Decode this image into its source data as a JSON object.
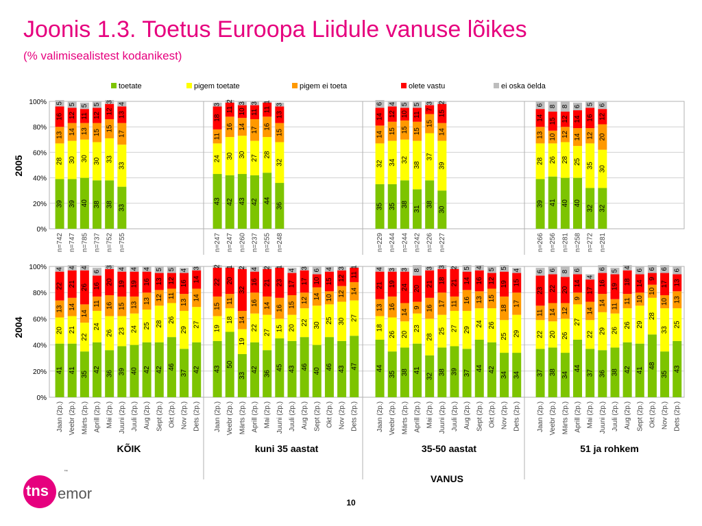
{
  "title": "Joonis 1.3. Toetus Euroopa Liidule vanuse lõikes",
  "subtitle": "(% valimisealistest kodanikest)",
  "page_number": "10",
  "logo_text": "tns emor",
  "colors": {
    "toetate": "#7dc400",
    "pigem toetate": "#ffff00",
    "pigem ei toeta": "#ff9900",
    "olete vastu": "#ff0000",
    "ei oska öelda": "#bdbdbd",
    "accent": "#e6007e"
  },
  "chart_data": [
    {
      "type": "bar",
      "stacked": true,
      "row_label": "2005",
      "ylim": [
        0,
        100
      ],
      "y_ticks": [
        "0%",
        "20%",
        "40%",
        "60%",
        "80%",
        "100%"
      ],
      "legend": [
        "toetate",
        "pigem toetate",
        "pigem ei toeta",
        "olete vastu",
        "ei oska öelda"
      ],
      "legend_position": "top",
      "groups": [
        {
          "categories": [
            "n=742",
            "n=747",
            "n=785",
            "n=737",
            "n=752",
            "n=755"
          ],
          "series": {
            "toetate": [
              39,
              39,
              40,
              38,
              38,
              33
            ],
            "pigem toetate": [
              28,
              30,
              30,
              30,
              33,
              33
            ],
            "pigem ei toeta": [
              13,
              14,
              13,
              15,
              15,
              17
            ],
            "olete vastu": [
              16,
              12,
              11,
              12,
              12,
              13
            ],
            "ei oska öelda": [
              5,
              5,
              5,
              5,
              3,
              4
            ]
          }
        },
        {
          "categories": [
            "n=247",
            "n=247",
            "n=260",
            "n=237",
            "n=255",
            "n=248"
          ],
          "series": {
            "toetate": [
              43,
              42,
              43,
              42,
              44,
              36
            ],
            "pigem toetate": [
              24,
              30,
              30,
              27,
              28,
              32
            ],
            "pigem ei toeta": [
              11,
              16,
              14,
              17,
              16,
              15
            ],
            "olete vastu": [
              18,
              11,
              10,
              11,
              11,
              13
            ],
            "ei oska öelda": [
              3,
              2,
              3,
              3,
              1,
              3
            ]
          }
        },
        {
          "categories": [
            "n=229",
            "n=244",
            "n=244",
            "n=242",
            "n=226",
            "n=227"
          ],
          "series": {
            "toetate": [
              35,
              35,
              38,
              31,
              38,
              30
            ],
            "pigem toetate": [
              32,
              34,
              32,
              38,
              37,
              39
            ],
            "pigem ei toeta": [
              14,
              15,
              15,
              15,
              15,
              14
            ],
            "olete vastu": [
              14,
              12,
              10,
              11,
              7,
              15
            ],
            "ei oska öelda": [
              6,
              4,
              5,
              5,
              3,
              2
            ]
          }
        },
        {
          "categories": [
            "n=266",
            "n=256",
            "n=281",
            "n=258",
            "n=272",
            "n=281"
          ],
          "series": {
            "toetate": [
              39,
              41,
              40,
              40,
              32,
              32
            ],
            "pigem toetate": [
              28,
              26,
              28,
              25,
              35,
              30
            ],
            "pigem ei toeta": [
              13,
              10,
              12,
              14,
              12,
              20
            ],
            "olete vastu": [
              14,
              15,
              12,
              14,
              16,
              12
            ],
            "ei oska öelda": [
              6,
              8,
              8,
              6,
              5,
              6
            ]
          }
        }
      ]
    },
    {
      "type": "bar",
      "stacked": true,
      "row_label": "2004",
      "ylim": [
        0,
        100
      ],
      "y_ticks": [
        "0%",
        "20%",
        "40%",
        "60%",
        "80%",
        "100%"
      ],
      "x_axis_title": "VANUS",
      "categories": [
        "Jaan (2p.)",
        "Veebr (2p.)",
        "Märts (2p.)",
        "Aprill (2p.)",
        "Mai (2p.)",
        "Juuni (2p.)",
        "Juuli (2p.)",
        "Aug (2p.)",
        "Sept (2p.)",
        "Okt (2p.)",
        "Nov (2p.)",
        "Dets (2p.)"
      ],
      "groups": [
        {
          "name": "KÕIK",
          "series": {
            "toetate": [
              41,
              41,
              35,
              42,
              36,
              39,
              40,
              42,
              42,
              46,
              37,
              42
            ],
            "pigem toetate": [
              20,
              21,
              22,
              24,
              26,
              23,
              24,
              25,
              28,
              26,
              29,
              27
            ],
            "pigem ei toeta": [
              13,
              14,
              14,
              11,
              16,
              15,
              13,
              13,
              12,
              11,
              13,
              14
            ],
            "olete vastu": [
              22,
              21,
              26,
              16,
              20,
              19,
              19,
              16,
              13,
              12,
              16,
              14
            ],
            "ei oska öelda": [
              4,
              4,
              4,
              6,
              3,
              4,
              4,
              4,
              5,
              5,
              4,
              3
            ]
          }
        },
        {
          "name": "kuni 35 aastat",
          "series": {
            "toetate": [
              43,
              50,
              33,
              42,
              36,
              45,
              43,
              46,
              40,
              46,
              43,
              47
            ],
            "pigem toetate": [
              19,
              18,
              19,
              22,
              27,
              15,
              20,
              22,
              30,
              25,
              30,
              27
            ],
            "pigem ei toeta": [
              15,
              11,
              14,
              16,
              14,
              16,
              15,
              12,
              14,
              10,
              12,
              14
            ],
            "olete vastu": [
              22,
              20,
              32,
              16,
              21,
              23,
              17,
              17,
              10,
              15,
              12,
              11
            ],
            "ei oska öelda": [
              2,
              1,
              2,
              4,
              2,
              1,
              4,
              3,
              6,
              4,
              3,
              1
            ]
          }
        },
        {
          "name": "35-50 aastat",
          "series": {
            "toetate": [
              44,
              35,
              38,
              41,
              32,
              38,
              39,
              37,
              44,
              42,
              34,
              34
            ],
            "pigem toetate": [
              18,
              26,
              20,
              23,
              28,
              25,
              27,
              29,
              24,
              26,
              25,
              29
            ],
            "pigem ei toeta": [
              13,
              16,
              14,
              9,
              16,
              17,
              11,
              16,
              13,
              15,
              18,
              17
            ],
            "olete vastu": [
              21,
              19,
              24,
              20,
              21,
              18,
              21,
              14,
              16,
              12,
              19,
              15
            ],
            "ei oska öelda": [
              4,
              3,
              3,
              8,
              3,
              3,
              2,
              5,
              4,
              5,
              5,
              4
            ]
          }
        },
        {
          "name": "51 ja rohkem",
          "series": {
            "toetate": [
              37,
              38,
              34,
              44,
              37,
              36,
              38,
              42,
              41,
              48,
              35,
              43
            ],
            "pigem toetate": [
              22,
              20,
              26,
              27,
              22,
              29,
              26,
              26,
              29,
              28,
              33,
              25
            ],
            "pigem ei toeta": [
              11,
              14,
              12,
              9,
              14,
              14,
              11,
              11,
              10,
              10,
              10,
              13
            ],
            "olete vastu": [
              23,
              22,
              20,
              14,
              17,
              16,
              19,
              18,
              14,
              9,
              17,
              13
            ],
            "ei oska öelda": [
              6,
              6,
              8,
              6,
              4,
              6,
              5,
              4,
              6,
              6,
              6,
              6
            ]
          }
        }
      ]
    }
  ]
}
